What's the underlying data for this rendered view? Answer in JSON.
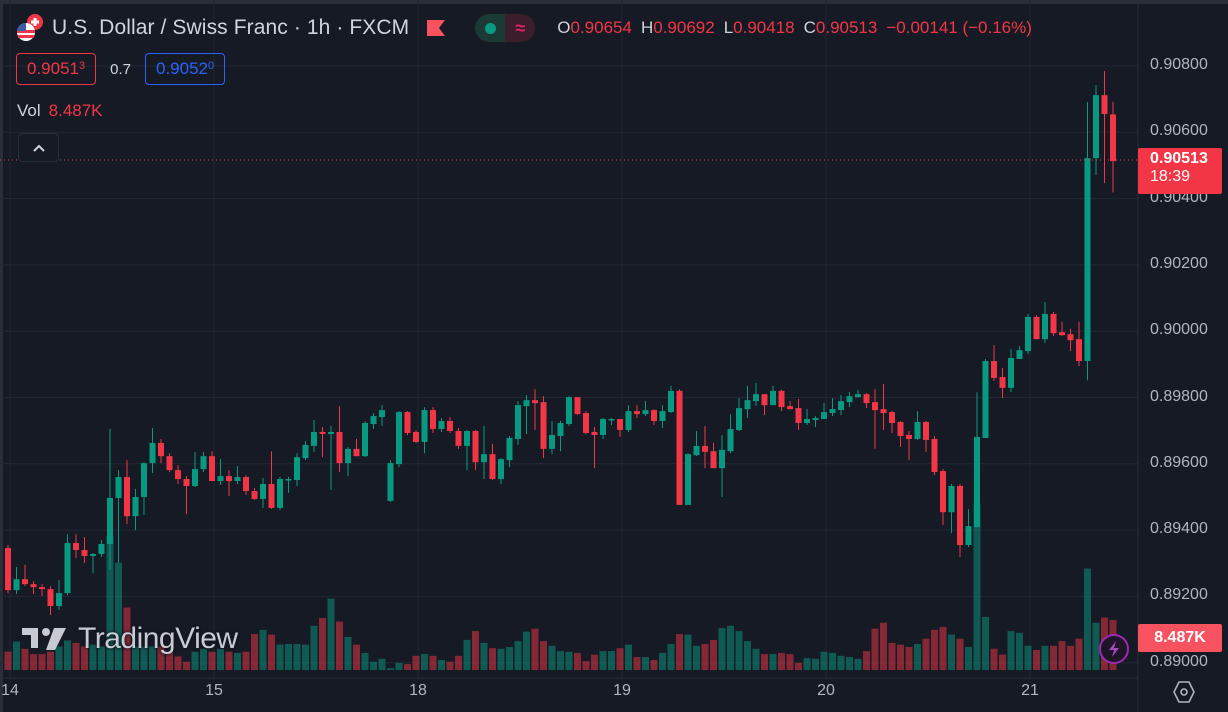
{
  "header": {
    "title": "U.S. Dollar / Swiss Franc · 1h · FXCM",
    "ohlc": [
      {
        "key": "O",
        "value": "0.90654"
      },
      {
        "key": "H",
        "value": "0.90692"
      },
      {
        "key": "L",
        "value": "0.90418"
      },
      {
        "key": "C",
        "value": "0.90513"
      }
    ],
    "change": "−0.00141 (−0.16%)",
    "toggle_icon": "≈"
  },
  "quote": {
    "bid_main": "0.9051",
    "bid_sup": "3",
    "spread": "0.7",
    "ask_main": "0.9052",
    "ask_sup": "0"
  },
  "volume_legend": {
    "label": "Vol",
    "value": "8.487K"
  },
  "price_axis": {
    "labels": [
      "0.90800",
      "0.90600",
      "0.90400",
      "0.90200",
      "0.90000",
      "0.89800",
      "0.89600",
      "0.89400",
      "0.89200",
      "0.89000"
    ],
    "current_price": "0.90513",
    "countdown": "18:39",
    "volume_value": "8.487K"
  },
  "time_axis": {
    "labels": [
      "14",
      "15",
      "18",
      "19",
      "20",
      "21"
    ]
  },
  "watermark": "TradingView",
  "colors": {
    "up": "#089981",
    "down": "#f23645",
    "background": "#161a25",
    "grid": "#232733"
  },
  "chart_data": {
    "type": "candlestick",
    "title": "U.S. Dollar / Swiss Franc · 1h · FXCM",
    "ylim": [
      0.89,
      0.908
    ],
    "yticks": [
      0.908,
      0.906,
      0.904,
      0.902,
      0.9,
      0.898,
      0.896,
      0.894,
      0.892,
      0.89
    ],
    "x_tick_labels": [
      "14",
      "15",
      "18",
      "19",
      "20",
      "21"
    ],
    "x_tick_candle_index": [
      0,
      24,
      48,
      72,
      96,
      120
    ],
    "grid": true,
    "columns": [
      "open",
      "high",
      "low",
      "close"
    ],
    "candles": [
      [
        0.89346,
        0.89355,
        0.8921,
        0.89219
      ],
      [
        0.89219,
        0.89289,
        0.89207,
        0.89252
      ],
      [
        0.89252,
        0.89295,
        0.89231,
        0.89237
      ],
      [
        0.89237,
        0.89246,
        0.89207,
        0.89228
      ],
      [
        0.89228,
        0.89237,
        0.89201,
        0.89222
      ],
      [
        0.89222,
        0.89231,
        0.89144,
        0.89171
      ],
      [
        0.89171,
        0.89249,
        0.89159,
        0.8921
      ],
      [
        0.8921,
        0.89388,
        0.89204,
        0.89361
      ],
      [
        0.89361,
        0.89388,
        0.89316,
        0.8934
      ],
      [
        0.8934,
        0.89379,
        0.89301,
        0.89322
      ],
      [
        0.89322,
        0.89331,
        0.8927,
        0.89328
      ],
      [
        0.89328,
        0.8937,
        0.89319,
        0.89358
      ],
      [
        0.89358,
        0.89705,
        0.8928,
        0.89497
      ],
      [
        0.89497,
        0.89581,
        0.89301,
        0.8956
      ],
      [
        0.8956,
        0.89611,
        0.89418,
        0.89442
      ],
      [
        0.89442,
        0.89524,
        0.894,
        0.895
      ],
      [
        0.895,
        0.89605,
        0.89445,
        0.89602
      ],
      [
        0.89602,
        0.89708,
        0.89572,
        0.89663
      ],
      [
        0.89663,
        0.89675,
        0.89602,
        0.89623
      ],
      [
        0.89623,
        0.89632,
        0.89575,
        0.89581
      ],
      [
        0.89581,
        0.89596,
        0.89539,
        0.89554
      ],
      [
        0.89554,
        0.89563,
        0.89448,
        0.89533
      ],
      [
        0.89533,
        0.89636,
        0.8953,
        0.89584
      ],
      [
        0.89584,
        0.89636,
        0.89575,
        0.89623
      ],
      [
        0.89623,
        0.89638,
        0.89548,
        0.89548
      ],
      [
        0.89548,
        0.89614,
        0.89536,
        0.89563
      ],
      [
        0.89563,
        0.89581,
        0.89503,
        0.89548
      ],
      [
        0.89548,
        0.89593,
        0.89539,
        0.8956
      ],
      [
        0.8956,
        0.89566,
        0.89506,
        0.89518
      ],
      [
        0.89518,
        0.89527,
        0.89491,
        0.89494
      ],
      [
        0.89494,
        0.89557,
        0.89467,
        0.89539
      ],
      [
        0.89539,
        0.89638,
        0.89464,
        0.89467
      ],
      [
        0.89467,
        0.8956,
        0.89461,
        0.89554
      ],
      [
        0.89554,
        0.8956,
        0.89512,
        0.89554
      ],
      [
        0.89551,
        0.89632,
        0.89533,
        0.8962
      ],
      [
        0.89617,
        0.89669,
        0.89611,
        0.89657
      ],
      [
        0.89654,
        0.89732,
        0.89636,
        0.89696
      ],
      [
        0.89696,
        0.89711,
        0.8962,
        0.8969
      ],
      [
        0.8969,
        0.89714,
        0.89521,
        0.89696
      ],
      [
        0.89696,
        0.89774,
        0.89575,
        0.89602
      ],
      [
        0.89602,
        0.89651,
        0.89563,
        0.89645
      ],
      [
        0.89645,
        0.89675,
        0.89623,
        0.89623
      ],
      [
        0.89623,
        0.89729,
        0.8962,
        0.89723
      ],
      [
        0.8972,
        0.89753,
        0.89705,
        0.89744
      ],
      [
        0.89741,
        0.89777,
        0.89714,
        0.89762
      ],
      [
        0.89488,
        0.89611,
        0.89485,
        0.89602
      ],
      [
        0.89599,
        0.89759,
        0.8959,
        0.89756
      ],
      [
        0.89756,
        0.89759,
        0.89686,
        0.89693
      ],
      [
        0.89696,
        0.89702,
        0.89663,
        0.89666
      ],
      [
        0.89666,
        0.89771,
        0.89632,
        0.89762
      ],
      [
        0.89762,
        0.89771,
        0.89693,
        0.89705
      ],
      [
        0.89705,
        0.89738,
        0.89696,
        0.89729
      ],
      [
        0.89729,
        0.89741,
        0.89693,
        0.89699
      ],
      [
        0.89699,
        0.89708,
        0.89645,
        0.89654
      ],
      [
        0.89654,
        0.89702,
        0.89581,
        0.89699
      ],
      [
        0.89699,
        0.89702,
        0.89581,
        0.89605
      ],
      [
        0.89605,
        0.89714,
        0.89554,
        0.89629
      ],
      [
        0.89629,
        0.8966,
        0.89551,
        0.89554
      ],
      [
        0.89554,
        0.89617,
        0.89539,
        0.89614
      ],
      [
        0.89611,
        0.89684,
        0.8959,
        0.89678
      ],
      [
        0.89675,
        0.89789,
        0.89657,
        0.89777
      ],
      [
        0.89774,
        0.89807,
        0.8969,
        0.89792
      ],
      [
        0.89792,
        0.89825,
        0.89702,
        0.89783
      ],
      [
        0.89786,
        0.89804,
        0.89617,
        0.89645
      ],
      [
        0.89645,
        0.89729,
        0.89629,
        0.89687
      ],
      [
        0.89684,
        0.89729,
        0.89638,
        0.89723
      ],
      [
        0.8972,
        0.89804,
        0.89714,
        0.89801
      ],
      [
        0.89801,
        0.89801,
        0.89747,
        0.8975
      ],
      [
        0.89753,
        0.89759,
        0.8969,
        0.89693
      ],
      [
        0.89696,
        0.89711,
        0.89587,
        0.89687
      ],
      [
        0.89687,
        0.89738,
        0.89675,
        0.89735
      ],
      [
        0.89735,
        0.89738,
        0.89717,
        0.89735
      ],
      [
        0.89735,
        0.89735,
        0.89681,
        0.89702
      ],
      [
        0.89702,
        0.89777,
        0.89696,
        0.89759
      ],
      [
        0.89759,
        0.89777,
        0.89738,
        0.8975
      ],
      [
        0.8975,
        0.89789,
        0.89744,
        0.89762
      ],
      [
        0.89762,
        0.89765,
        0.89717,
        0.89729
      ],
      [
        0.89729,
        0.89777,
        0.89708,
        0.89759
      ],
      [
        0.89756,
        0.89835,
        0.89753,
        0.8982
      ],
      [
        0.8982,
        0.89825,
        0.89476,
        0.89476
      ],
      [
        0.89476,
        0.89632,
        0.89476,
        0.89629
      ],
      [
        0.89626,
        0.89699,
        0.89623,
        0.89654
      ],
      [
        0.89654,
        0.89714,
        0.89587,
        0.89636
      ],
      [
        0.89638,
        0.89663,
        0.89587,
        0.89587
      ],
      [
        0.89587,
        0.89687,
        0.895,
        0.89642
      ],
      [
        0.89638,
        0.8975,
        0.89632,
        0.89705
      ],
      [
        0.89702,
        0.89798,
        0.89699,
        0.89768
      ],
      [
        0.89765,
        0.89835,
        0.89738,
        0.89792
      ],
      [
        0.89789,
        0.89844,
        0.89774,
        0.8981
      ],
      [
        0.8981,
        0.8981,
        0.89747,
        0.89777
      ],
      [
        0.89777,
        0.89835,
        0.89777,
        0.8982
      ],
      [
        0.8982,
        0.89823,
        0.89759,
        0.89771
      ],
      [
        0.89774,
        0.89789,
        0.89765,
        0.89765
      ],
      [
        0.89768,
        0.89795,
        0.89702,
        0.89723
      ],
      [
        0.89723,
        0.89765,
        0.89717,
        0.89735
      ],
      [
        0.89732,
        0.89744,
        0.89711,
        0.89738
      ],
      [
        0.89735,
        0.89783,
        0.89735,
        0.89756
      ],
      [
        0.89753,
        0.89798,
        0.89744,
        0.89765
      ],
      [
        0.89762,
        0.89807,
        0.89747,
        0.89789
      ],
      [
        0.89786,
        0.89816,
        0.89771,
        0.89804
      ],
      [
        0.89801,
        0.89823,
        0.89801,
        0.8981
      ],
      [
        0.8981,
        0.89813,
        0.89768,
        0.89783
      ],
      [
        0.89786,
        0.89825,
        0.89645,
        0.89762
      ],
      [
        0.89765,
        0.89841,
        0.89702,
        0.89753
      ],
      [
        0.89756,
        0.89759,
        0.89693,
        0.89723
      ],
      [
        0.89726,
        0.89729,
        0.89651,
        0.89684
      ],
      [
        0.89687,
        0.89699,
        0.89611,
        0.89675
      ],
      [
        0.89675,
        0.89759,
        0.89672,
        0.89726
      ],
      [
        0.89726,
        0.89729,
        0.89636,
        0.89672
      ],
      [
        0.89675,
        0.89684,
        0.89566,
        0.89575
      ],
      [
        0.89578,
        0.89584,
        0.89415,
        0.89454
      ],
      [
        0.89454,
        0.89539,
        0.89391,
        0.89533
      ],
      [
        0.89533,
        0.89539,
        0.89319,
        0.89355
      ],
      [
        0.89355,
        0.89463,
        0.89349,
        0.89412
      ],
      [
        0.89409,
        0.89816,
        0.89409,
        0.89681
      ],
      [
        0.89678,
        0.89916,
        0.89678,
        0.8991
      ],
      [
        0.8991,
        0.89958,
        0.8985,
        0.89859
      ],
      [
        0.89862,
        0.89889,
        0.89798,
        0.89829
      ],
      [
        0.89829,
        0.89946,
        0.89816,
        0.89919
      ],
      [
        0.89916,
        0.89955,
        0.89916,
        0.89943
      ],
      [
        0.8994,
        0.90052,
        0.89931,
        0.90043
      ],
      [
        0.90043,
        0.90049,
        0.89976,
        0.89976
      ],
      [
        0.89976,
        0.90088,
        0.89964,
        0.90052
      ],
      [
        0.90052,
        0.90058,
        0.89985,
        0.89994
      ],
      [
        0.89997,
        0.90028,
        0.89985,
        0.89988
      ],
      [
        0.89991,
        0.90007,
        0.8994,
        0.89973
      ],
      [
        0.89976,
        0.90028,
        0.89895,
        0.8991
      ],
      [
        0.8991,
        0.90691,
        0.89852,
        0.90522
      ],
      [
        0.90522,
        0.90743,
        0.90471,
        0.90712
      ],
      [
        0.90712,
        0.90785,
        0.90447,
        0.90655
      ],
      [
        0.90654,
        0.90692,
        0.90418,
        0.90513
      ]
    ],
    "volume_unit": "K",
    "volume": [
      3.1,
      4.8,
      3.6,
      2.7,
      2.7,
      3.1,
      4.0,
      5.0,
      4.6,
      4.0,
      4.3,
      4.0,
      22.7,
      18.2,
      10.6,
      4.0,
      4.0,
      4.0,
      4.0,
      3.1,
      2.3,
      1.4,
      3.1,
      3.6,
      3.1,
      3.6,
      3.1,
      2.9,
      3.1,
      6.1,
      6.8,
      6.0,
      4.3,
      4.4,
      4.4,
      4.3,
      7.5,
      8.8,
      12.1,
      8.2,
      5.6,
      4.3,
      2.9,
      1.4,
      1.9,
      0.3,
      1.2,
      1.0,
      2.4,
      2.7,
      2.4,
      1.7,
      1.4,
      2.4,
      5.1,
      6.6,
      4.6,
      3.7,
      3.6,
      3.9,
      4.9,
      6.5,
      7.0,
      4.9,
      4.1,
      3.2,
      3.1,
      2.9,
      1.5,
      2.6,
      3.2,
      3.2,
      3.7,
      4.3,
      2.2,
      2.2,
      1.7,
      2.9,
      4.4,
      6.1,
      6.0,
      4.1,
      4.4,
      5.1,
      7.1,
      7.5,
      6.6,
      4.9,
      3.6,
      2.7,
      2.7,
      2.9,
      2.7,
      1.2,
      2.0,
      1.9,
      3.1,
      2.9,
      2.4,
      2.2,
      1.9,
      3.2,
      7.0,
      8.0,
      4.6,
      4.3,
      3.9,
      4.4,
      5.3,
      6.8,
      7.3,
      6.0,
      5.3,
      3.9,
      28.2,
      9.0,
      3.6,
      2.6,
      6.6,
      6.3,
      4.1,
      3.4,
      4.1,
      4.1,
      4.9,
      4.1,
      5.3,
      17.2,
      8.0,
      8.9,
      8.487
    ],
    "last_price": 0.90513
  }
}
